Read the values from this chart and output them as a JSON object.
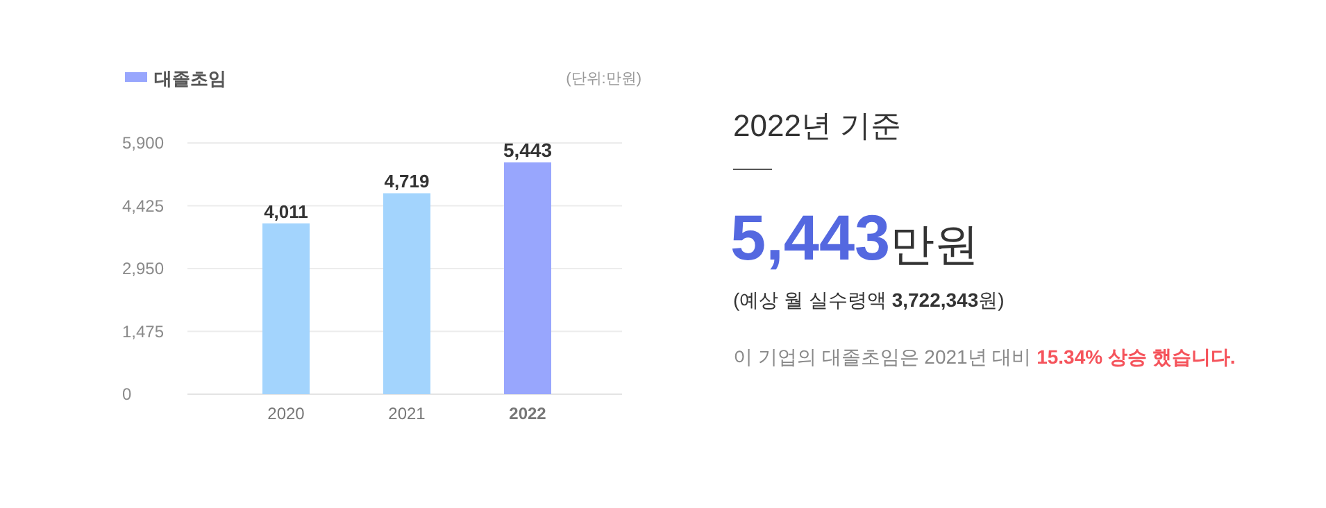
{
  "chart_data": [
    {
      "type": "bar",
      "categories": [
        "2020",
        "2021",
        "2022"
      ],
      "series": [
        {
          "name": "대졸초임",
          "color": "#98a6fd",
          "colors": [
            "#a3d4fd",
            "#a3d4fd",
            "#98a6fd"
          ],
          "values": [
            4011,
            4719,
            5443
          ],
          "value_labels": [
            "4,011",
            "4,719",
            "5,443"
          ]
        }
      ],
      "ylim": [
        0,
        5900
      ],
      "yticks": [
        {
          "value": 0,
          "label": "0"
        },
        {
          "value": 1475,
          "label": "1,475"
        },
        {
          "value": 2950,
          "label": "2,950"
        },
        {
          "value": 4425,
          "label": "4,425"
        },
        {
          "value": 5900,
          "label": "5,900"
        }
      ],
      "grid": "y",
      "legend": "top left",
      "annotations": [
        "(단위:만원)"
      ]
    },
    {
      "type": "other",
      "title": "2022년 기준",
      "annotations": [
        "5,443만원",
        "(예상 월 실수령액 3,722,343원)",
        "이 기업의 대졸초임은 2021년 대비 15.34% 상승 했습니다."
      ]
    }
  ]
}
